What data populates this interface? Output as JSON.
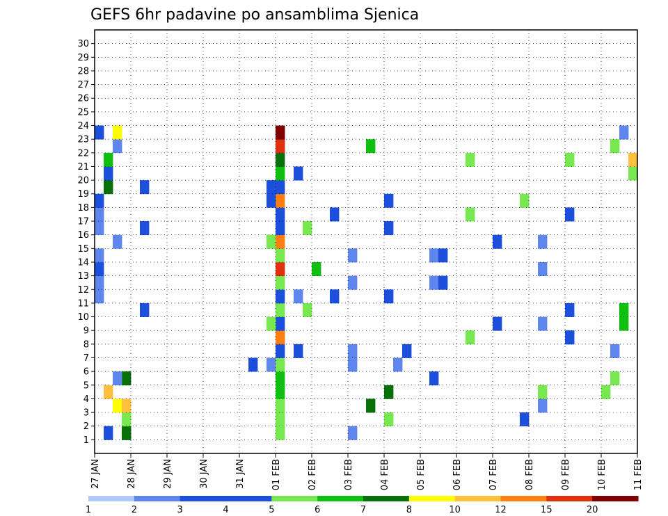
{
  "chart_data": {
    "type": "heatmap",
    "title": "GEFS 6hr padavine po ansamblima Sjenica",
    "xlabel": "",
    "ylabel": "",
    "x_tick_labels": [
      "27 JAN",
      "28 JAN",
      "29 JAN",
      "30 JAN",
      "31 JAN",
      "01 FEB",
      "02 FEB",
      "03 FEB",
      "04 FEB",
      "05 FEB",
      "06 FEB",
      "07 FEB",
      "08 FEB",
      "09 FEB",
      "10 FEB",
      "11 FEB"
    ],
    "y_tick_labels": [
      "1",
      "2",
      "3",
      "4",
      "5",
      "6",
      "7",
      "8",
      "9",
      "10",
      "11",
      "12",
      "13",
      "14",
      "15",
      "16",
      "17",
      "18",
      "19",
      "20",
      "21",
      "22",
      "23",
      "24",
      "25",
      "26",
      "27",
      "28",
      "29",
      "30"
    ],
    "x_steps_per_day": 4,
    "x_num_steps": 60,
    "members": 30,
    "grid": true,
    "colorbar": {
      "labels": [
        "1",
        "2",
        "3",
        "4",
        "5",
        "6",
        "7",
        "8",
        "10",
        "12",
        "15",
        "20"
      ],
      "colors": [
        "#b4c8f8",
        "#5f86ec",
        "#1c4fdc",
        "#1c4fdc",
        "#78e850",
        "#10c010",
        "#087008",
        "#ffff00",
        "#ffc040",
        "#ff8010",
        "#e03010",
        "#800000"
      ]
    },
    "cells": [
      [
        1,
        28,
        1
      ],
      [
        1,
        3,
        2
      ],
      [
        1,
        20,
        4
      ],
      [
        1,
        1,
        2
      ],
      [
        1,
        3,
        6
      ],
      [
        2,
        20,
        4
      ],
      [
        2,
        3,
        7
      ],
      [
        2,
        32,
        4
      ],
      [
        2,
        3,
        4
      ],
      [
        2,
        47,
        2
      ],
      [
        3,
        20,
        4
      ],
      [
        3,
        2,
        7
      ],
      [
        3,
        3,
        8
      ],
      [
        3,
        30,
        6
      ],
      [
        3,
        49,
        1
      ],
      [
        4,
        20,
        5
      ],
      [
        4,
        1,
        8
      ],
      [
        4,
        49,
        4
      ],
      [
        4,
        32,
        6
      ],
      [
        4,
        56,
        4
      ],
      [
        5,
        20,
        5
      ],
      [
        5,
        37,
        3
      ],
      [
        5,
        3,
        6
      ],
      [
        5,
        57,
        4
      ],
      [
        5,
        2,
        1
      ],
      [
        6,
        20,
        4
      ],
      [
        6,
        17,
        3
      ],
      [
        6,
        33,
        1
      ],
      [
        6,
        28,
        1
      ],
      [
        6,
        19,
        1
      ],
      [
        7,
        20,
        3
      ],
      [
        7,
        22,
        2
      ],
      [
        7,
        28,
        1
      ],
      [
        7,
        57,
        1
      ],
      [
        7,
        34,
        2
      ],
      [
        8,
        20,
        3
      ],
      [
        8,
        52,
        1
      ],
      [
        8,
        20,
        9
      ],
      [
        8,
        52,
        2
      ],
      [
        8,
        41,
        4
      ],
      [
        9,
        20,
        3
      ],
      [
        9,
        49,
        1
      ],
      [
        9,
        44,
        2
      ],
      [
        9,
        19,
        4
      ],
      [
        9,
        58,
        5
      ],
      [
        10,
        20,
        4
      ],
      [
        10,
        52,
        3
      ],
      [
        10,
        23,
        4
      ],
      [
        10,
        5,
        3
      ],
      [
        10,
        58,
        5
      ],
      [
        11,
        20,
        3
      ],
      [
        11,
        22,
        1
      ],
      [
        11,
        26,
        3
      ],
      [
        11,
        32,
        2
      ],
      [
        11,
        0,
        1
      ],
      [
        12,
        20,
        4
      ],
      [
        12,
        37,
        1
      ],
      [
        12,
        38,
        2
      ],
      [
        12,
        28,
        1
      ],
      [
        12,
        0,
        1
      ],
      [
        13,
        20,
        4
      ],
      [
        13,
        24,
        5
      ],
      [
        13,
        49,
        1
      ],
      [
        13,
        20,
        10
      ],
      [
        13,
        0,
        2
      ],
      [
        14,
        20,
        4
      ],
      [
        14,
        37,
        1
      ],
      [
        14,
        38,
        2
      ],
      [
        14,
        28,
        1
      ],
      [
        14,
        0,
        1
      ],
      [
        15,
        20,
        9
      ],
      [
        15,
        49,
        1
      ],
      [
        15,
        44,
        2
      ],
      [
        15,
        19,
        4
      ],
      [
        15,
        2,
        1
      ],
      [
        16,
        20,
        3
      ],
      [
        16,
        23,
        4
      ],
      [
        16,
        5,
        3
      ],
      [
        16,
        32,
        2
      ],
      [
        16,
        0,
        1
      ],
      [
        17,
        20,
        3
      ],
      [
        17,
        26,
        3
      ],
      [
        17,
        52,
        3
      ],
      [
        17,
        41,
        4
      ],
      [
        17,
        0,
        1
      ],
      [
        18,
        20,
        9
      ],
      [
        18,
        32,
        3
      ],
      [
        18,
        47,
        4
      ],
      [
        18,
        0,
        2
      ],
      [
        18,
        19,
        2
      ],
      [
        19,
        20,
        3
      ],
      [
        19,
        1,
        4
      ],
      [
        19,
        5,
        3
      ],
      [
        19,
        1,
        6
      ],
      [
        19,
        19,
        2
      ],
      [
        20,
        20,
        5
      ],
      [
        20,
        1,
        8
      ],
      [
        20,
        59,
        4
      ],
      [
        20,
        22,
        2
      ],
      [
        20,
        1,
        2
      ],
      [
        21,
        20,
        6
      ],
      [
        21,
        52,
        4
      ],
      [
        21,
        41,
        4
      ],
      [
        21,
        1,
        5
      ],
      [
        21,
        59,
        8
      ],
      [
        22,
        20,
        3
      ],
      [
        22,
        30,
        5
      ],
      [
        22,
        57,
        4
      ],
      [
        22,
        2,
        1
      ],
      [
        22,
        20,
        10
      ],
      [
        23,
        20,
        3
      ],
      [
        23,
        58,
        1
      ],
      [
        23,
        0,
        2
      ],
      [
        23,
        2,
        7
      ],
      [
        23,
        20,
        11
      ]
    ]
  }
}
